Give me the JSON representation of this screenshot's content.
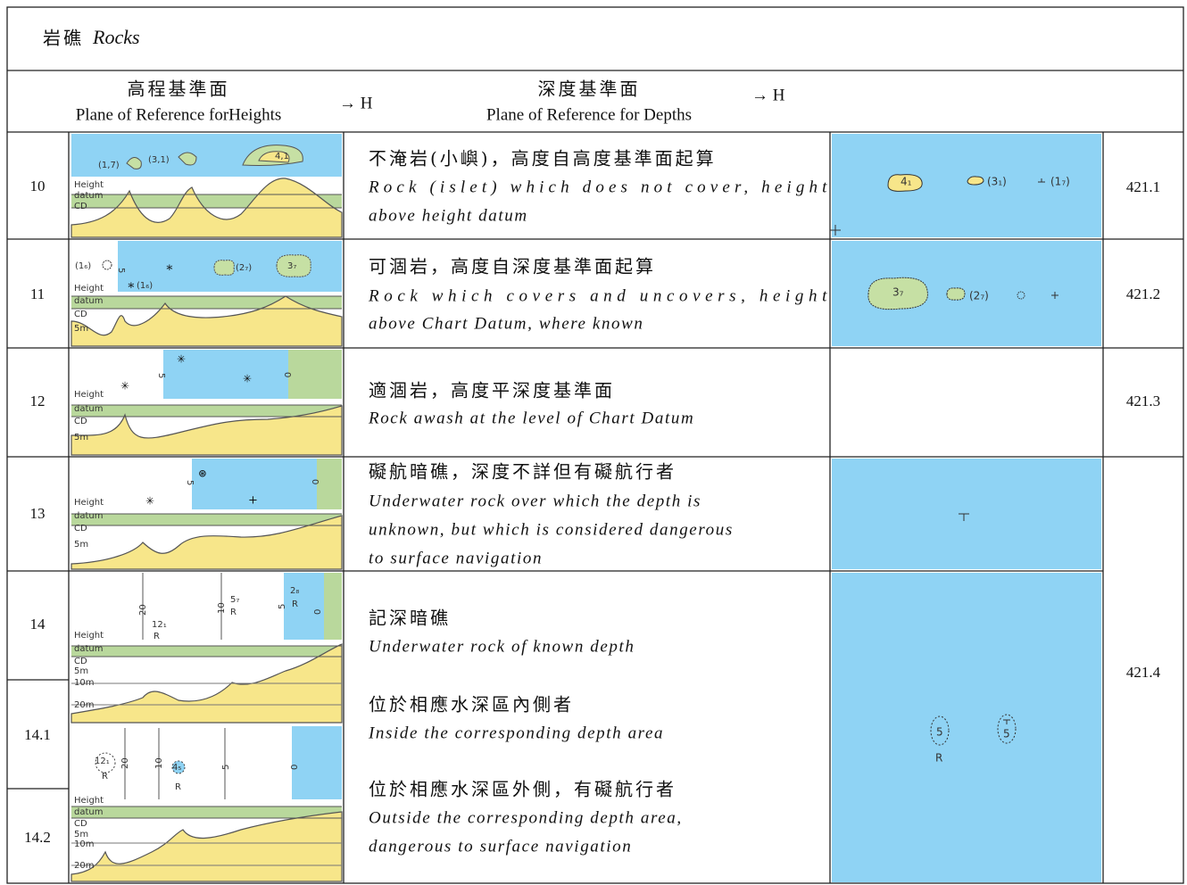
{
  "title": {
    "zh": "岩礁",
    "en": "Rocks"
  },
  "header": {
    "heights_zh": "高程基準面",
    "heights_en": "Plane of Reference forHeights",
    "heights_arrow": "→ H",
    "depths_zh": "深度基準面",
    "depths_en": "Plane of Reference for Depths",
    "depths_arrow": "→ H"
  },
  "rows": [
    {
      "number": "10",
      "zh": "不淹岩(小嶼)，高度自高度基準面起算",
      "en": [
        "Rock (islet) which does not cover, height",
        "above height datum"
      ],
      "reference": "421.1",
      "figure_labels": [
        "(1,7)",
        "(3,1)",
        "4,1",
        "Height",
        "datum",
        "CD"
      ],
      "symbol_labels": [
        "4₁",
        "(3₁)",
        "(1₇)"
      ]
    },
    {
      "number": "11",
      "zh": "可涸岩，高度自深度基準面起算",
      "en": [
        "Rock which covers and uncovers, height",
        "above Chart Datum, where known"
      ],
      "reference": "421.2",
      "figure_labels": [
        "(1₆)",
        "5",
        "(1₆)",
        "(2₇)",
        "3₇",
        "Height",
        "datum",
        "CD",
        "5m"
      ],
      "symbol_labels": [
        "3₇",
        "(2₇)"
      ]
    },
    {
      "number": "12",
      "zh": "適涸岩，高度平深度基準面",
      "en": [
        "Rock awash at the level of Chart Datum"
      ],
      "reference": "421.3",
      "figure_labels": [
        "5",
        "0",
        "Height",
        "datum",
        "CD",
        "5m"
      ]
    },
    {
      "number": "13",
      "zh": "礙航暗礁，深度不詳但有礙航行者",
      "en": [
        "Underwater rock over which the depth is",
        "unknown, but which is considered dangerous",
        "to surface navigation"
      ],
      "reference": "421.4",
      "figure_labels": [
        "5",
        "0",
        "Height",
        "datum",
        "CD",
        "5m"
      ]
    },
    {
      "number": "14",
      "zh": "記深暗礁",
      "en": [
        "Underwater rock of known depth"
      ],
      "figure_labels": [
        "20",
        "12₁",
        "R",
        "10",
        "5₇",
        "R",
        "5",
        "2₈",
        "R",
        "0",
        "Height",
        "datum",
        "CD",
        "5m",
        "10m",
        "20m"
      ]
    },
    {
      "number": "14.1",
      "zh": "位於相應水深區內側者",
      "en": [
        "Inside the corresponding depth area"
      ],
      "symbol_labels": [
        "5",
        "R",
        "5"
      ]
    },
    {
      "number": "14.2",
      "zh": "位於相應水深區外側，有礙航行者",
      "en": [
        "Outside the corresponding depth area,",
        "dangerous to surface navigation"
      ],
      "figure_labels": [
        "12₁",
        "R",
        "20",
        "10",
        "4₅",
        "R",
        "5",
        "0",
        "Height",
        "datum",
        "CD",
        "5m",
        "10m",
        "20m"
      ]
    }
  ]
}
